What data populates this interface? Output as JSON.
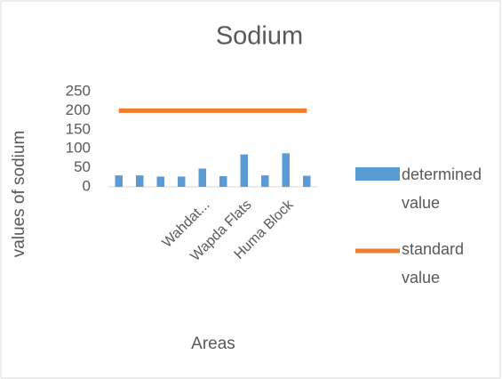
{
  "chart_data": {
    "type": "bar",
    "title": "Sodium",
    "x_label": "Areas",
    "y_label": "values of sodium",
    "categories": [
      null,
      null,
      null,
      null,
      "Wahdat...",
      null,
      "Wapda Flats",
      null,
      "Huma Block",
      null
    ],
    "series": [
      {
        "name": "determined value",
        "type": "bar",
        "color": "#5b9bd5",
        "values": [
          30,
          30,
          27,
          27,
          48,
          28,
          85,
          30,
          88,
          29
        ]
      },
      {
        "name": "standard value",
        "type": "line",
        "color": "#ed7d31",
        "values": [
          200,
          200,
          200,
          200,
          200,
          200,
          200,
          200,
          200,
          200
        ]
      }
    ],
    "ylim": [
      0,
      250
    ],
    "yticks": [
      0,
      50,
      100,
      150,
      200,
      250
    ],
    "grid": false,
    "legend": "right"
  }
}
